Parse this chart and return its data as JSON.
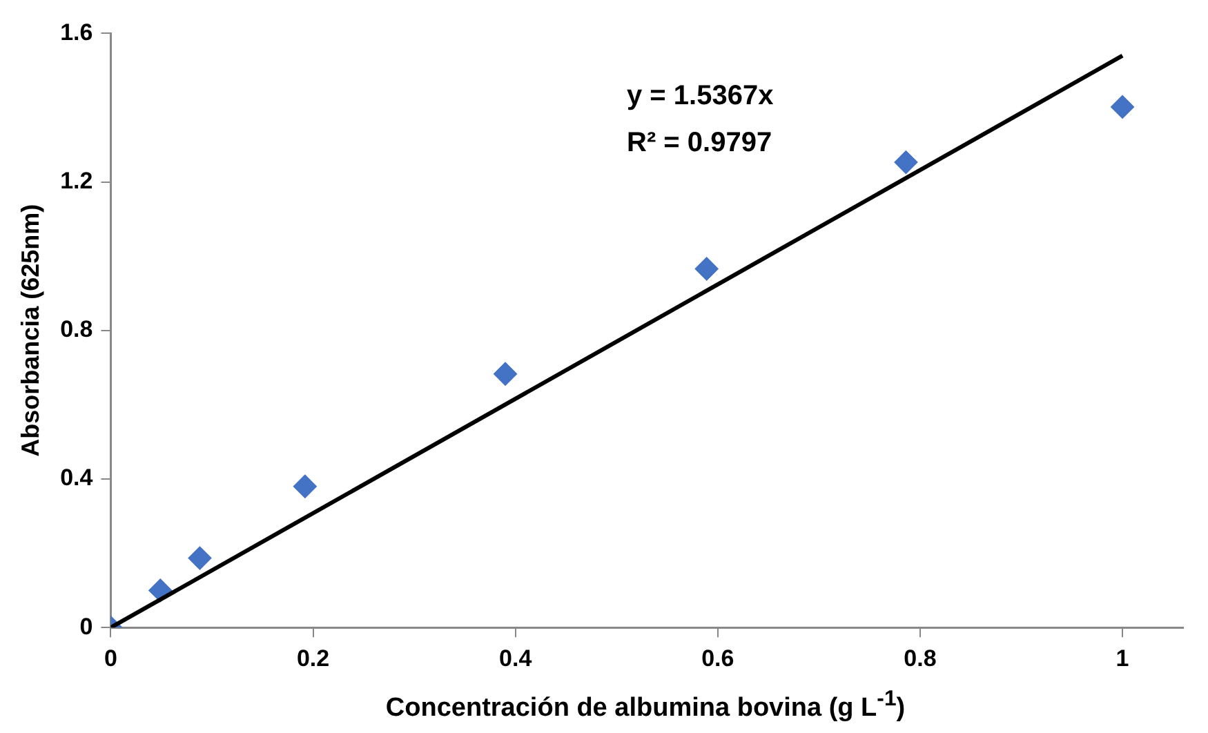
{
  "chart_data": {
    "type": "scatter",
    "xlabel": "Concentración de albumina bovina (g L$^{-1}$)",
    "ylabel": "Absorbancia (625nm)",
    "xlim": [
      0,
      1.06
    ],
    "xticks": [
      0,
      0.2,
      0.4,
      0.6,
      0.8,
      1
    ],
    "ylim": [
      0,
      1.6
    ],
    "yticks": [
      0,
      0.4,
      0.8,
      1.2,
      1.6
    ],
    "marker": "diamond",
    "grid": false,
    "legend": false,
    "annotations": [
      "y = 1.5367x",
      "R² = 0.9797"
    ],
    "series": [
      {
        "color": "#4472c4",
        "x": [
          0,
          0.049,
          0.088,
          0.192,
          0.39,
          0.589,
          0.786,
          1.0
        ],
        "values": [
          0,
          0.1,
          0.187,
          0.38,
          0.683,
          0.966,
          1.253,
          1.402
        ]
      },
      {
        "type": "line",
        "color": "#000000",
        "marker": "none",
        "line_style": "solid",
        "x": [
          0,
          1
        ],
        "values": [
          0,
          1.54
        ]
      }
    ]
  }
}
